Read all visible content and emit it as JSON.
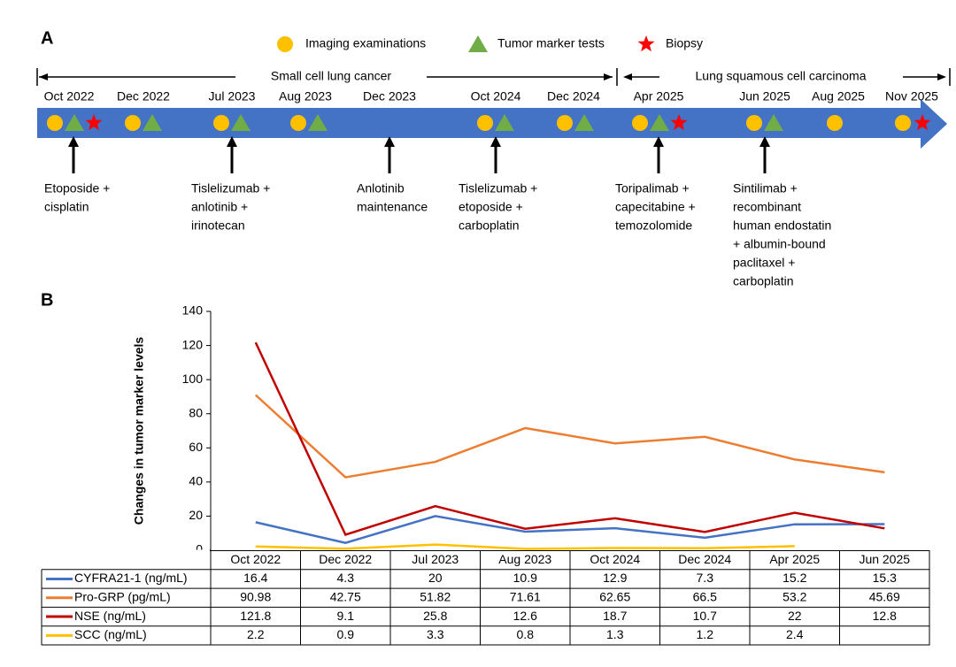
{
  "panel_a": {
    "label": "A",
    "legend": [
      "Imaging examinations",
      "Tumor marker tests",
      "Biopsy"
    ],
    "phases": [
      "Small cell lung cancer",
      "Lung squamous cell carcinoma"
    ],
    "timeline": [
      {
        "date": "Oct 2022",
        "imaging": true,
        "tumor_marker": true,
        "biopsy": true,
        "treatment": [
          "Etoposide +",
          "cisplatin"
        ]
      },
      {
        "date": "Dec 2022",
        "imaging": true,
        "tumor_marker": true,
        "biopsy": false
      },
      {
        "date": "Jul 2023",
        "imaging": true,
        "tumor_marker": true,
        "biopsy": false,
        "treatment": [
          "Tislelizumab +",
          "anlotinib +",
          "irinotecan"
        ]
      },
      {
        "date": "Aug 2023",
        "imaging": true,
        "tumor_marker": true,
        "biopsy": false
      },
      {
        "date": "Dec 2023",
        "imaging": false,
        "tumor_marker": false,
        "biopsy": false,
        "treatment": [
          "Anlotinib",
          "maintenance"
        ]
      },
      {
        "date": "Oct 2024",
        "imaging": true,
        "tumor_marker": true,
        "biopsy": false,
        "treatment": [
          "Tislelizumab +",
          "etoposide +",
          "carboplatin"
        ]
      },
      {
        "date": "Dec 2024",
        "imaging": true,
        "tumor_marker": true,
        "biopsy": false
      },
      {
        "date": "Apr 2025",
        "imaging": true,
        "tumor_marker": true,
        "biopsy": true,
        "treatment": [
          "Toripalimab +",
          "capecitabine +",
          "temozolomide"
        ]
      },
      {
        "date": "Jun 2025",
        "imaging": true,
        "tumor_marker": true,
        "biopsy": false,
        "treatment": [
          "Sintilimab +",
          "recombinant",
          "human endostatin",
          "+ albumin-bound",
          "paclitaxel +",
          "carboplatin"
        ]
      },
      {
        "date": "Aug 2025",
        "imaging": true,
        "tumor_marker": false,
        "biopsy": false
      },
      {
        "date": "Nov 2025",
        "imaging": true,
        "tumor_marker": false,
        "biopsy": true
      }
    ]
  },
  "chart_data": {
    "type": "line",
    "label": "B",
    "y_label": "Changes in tumor marker levels",
    "categories": [
      "Oct 2022",
      "Dec 2022",
      "Jul 2023",
      "Aug 2023",
      "Oct 2024",
      "Dec 2024",
      "Apr 2025",
      "Jun 2025"
    ],
    "series": [
      {
        "name": "CYFRA21-1 (ng/mL)",
        "color": "#4472c4",
        "values": [
          16.4,
          4.3,
          20,
          10.9,
          12.9,
          7.3,
          15.2,
          15.3
        ]
      },
      {
        "name": "Pro-GRP (pg/mL)",
        "color": "#ed7d31",
        "values": [
          90.98,
          42.75,
          51.82,
          71.61,
          62.65,
          66.5,
          53.2,
          45.69
        ]
      },
      {
        "name": "NSE (ng/mL)",
        "color": "#c00000",
        "values": [
          121.8,
          9.1,
          25.8,
          12.6,
          18.7,
          10.7,
          22,
          12.8
        ]
      },
      {
        "name": "SCC (ng/mL)",
        "color": "#ffc000",
        "values": [
          2.2,
          0.9,
          3.3,
          0.8,
          1.3,
          1.2,
          2.4,
          null
        ]
      }
    ],
    "ylim": [
      0,
      140
    ],
    "yticks": [
      0,
      20,
      40,
      60,
      80,
      100,
      120,
      140
    ]
  }
}
